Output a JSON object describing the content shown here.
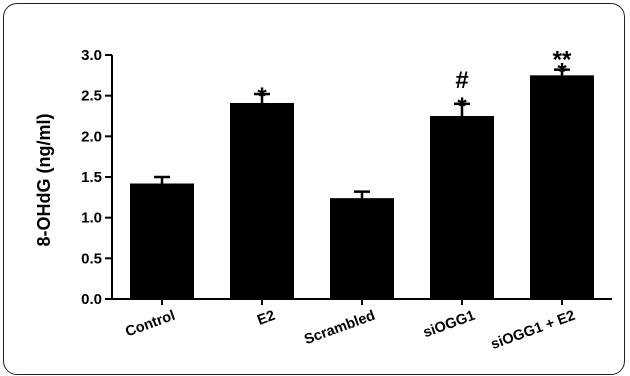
{
  "chart_data": {
    "type": "bar",
    "title": "",
    "xlabel": "",
    "ylabel": "8-OHdG (ng/ml)",
    "ylim": [
      0,
      3.0
    ],
    "yticks": [
      "0.0",
      "0.5",
      "1.0",
      "1.5",
      "2.0",
      "2.5",
      "3.0"
    ],
    "categories": [
      "Control",
      "E2",
      "Scrambled",
      "siOGG1",
      "siOGG1 + E2"
    ],
    "values": [
      1.42,
      2.41,
      1.24,
      2.25,
      2.75
    ],
    "errors": [
      0.08,
      0.11,
      0.08,
      0.15,
      0.07
    ],
    "annotations": [
      "",
      "*",
      "",
      "#\n*",
      "**\n*"
    ],
    "bar_color": "#000000",
    "grid": false,
    "legend": "none"
  }
}
